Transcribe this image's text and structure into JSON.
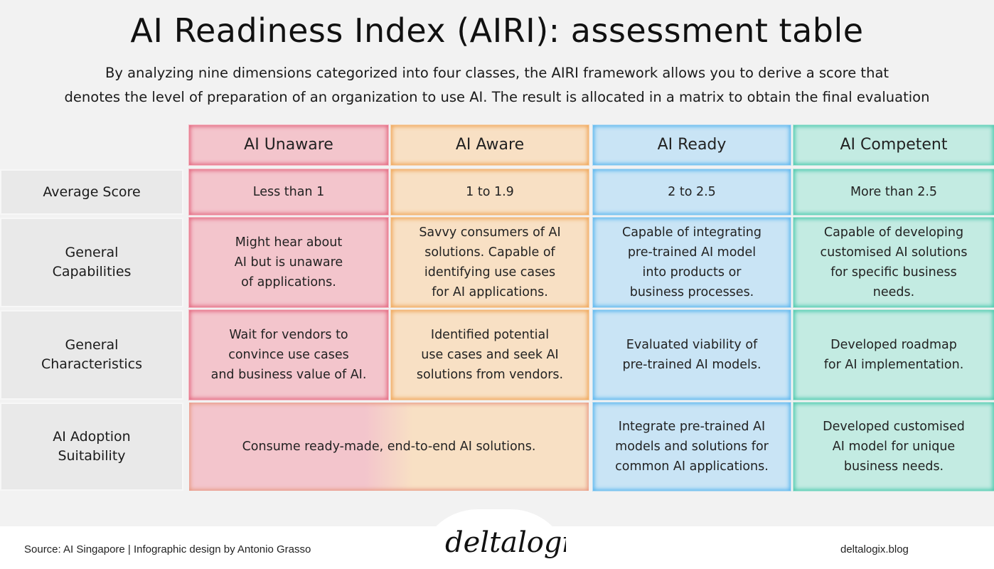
{
  "title": "AI Readiness Index (AIRI): assessment table",
  "subtitle_line1": "By analyzing nine dimensions categorized into four classes, the AIRI framework allows you to derive a score that",
  "subtitle_line2": "denotes the level of preparation of an organization to use AI. The result is allocated in a matrix to obtain the final evaluation",
  "colors": {
    "unaware": "#f3c5cc",
    "aware": "#f8e0c4",
    "ready": "#c9e4f5",
    "competent": "#c3ebe2"
  },
  "columns": [
    "AI Unaware",
    "AI Aware",
    "AI Ready",
    "AI Competent"
  ],
  "rows": {
    "average_score": {
      "label": "Average Score",
      "values": [
        "Less than 1",
        "1 to 1.9",
        "2 to 2.5",
        "More than 2.5"
      ]
    },
    "general_capabilities": {
      "label_line1": "General",
      "label_line2": "Capabilities",
      "values": [
        [
          "Might hear about",
          "AI but is unaware",
          "of applications."
        ],
        [
          "Savvy consumers of AI",
          "solutions. Capable of",
          "identifying use cases",
          "for AI applications."
        ],
        [
          "Capable of integrating",
          "pre-trained AI model",
          "into products or",
          "business processes."
        ],
        [
          "Capable of developing",
          "customised AI solutions",
          "for specific business",
          "needs."
        ]
      ]
    },
    "general_characteristics": {
      "label_line1": "General",
      "label_line2": "Characteristics",
      "values": [
        [
          "Wait for vendors to",
          "convince use cases",
          "and business value of AI."
        ],
        [
          "Identified potential",
          "use cases and seek AI",
          "solutions from vendors."
        ],
        [
          "Evaluated viability of",
          "pre-trained AI models."
        ],
        [
          "Developed roadmap",
          "for AI implementation."
        ]
      ]
    },
    "adoption_suitability": {
      "label_line1": "AI Adoption",
      "label_line2": "Suitability",
      "merged_unaware_aware": "Consume ready-made, end-to-end AI solutions.",
      "ready": [
        "Integrate pre-trained AI",
        "models and solutions for",
        "common AI applications."
      ],
      "competent": [
        "Developed customised",
        "AI model for unique",
        "business needs."
      ]
    }
  },
  "footer": {
    "source": "Source: AI Singapore | Infographic design by Antonio Grasso",
    "logo_text": "deltalogiX",
    "site": "deltalogix.blog"
  }
}
